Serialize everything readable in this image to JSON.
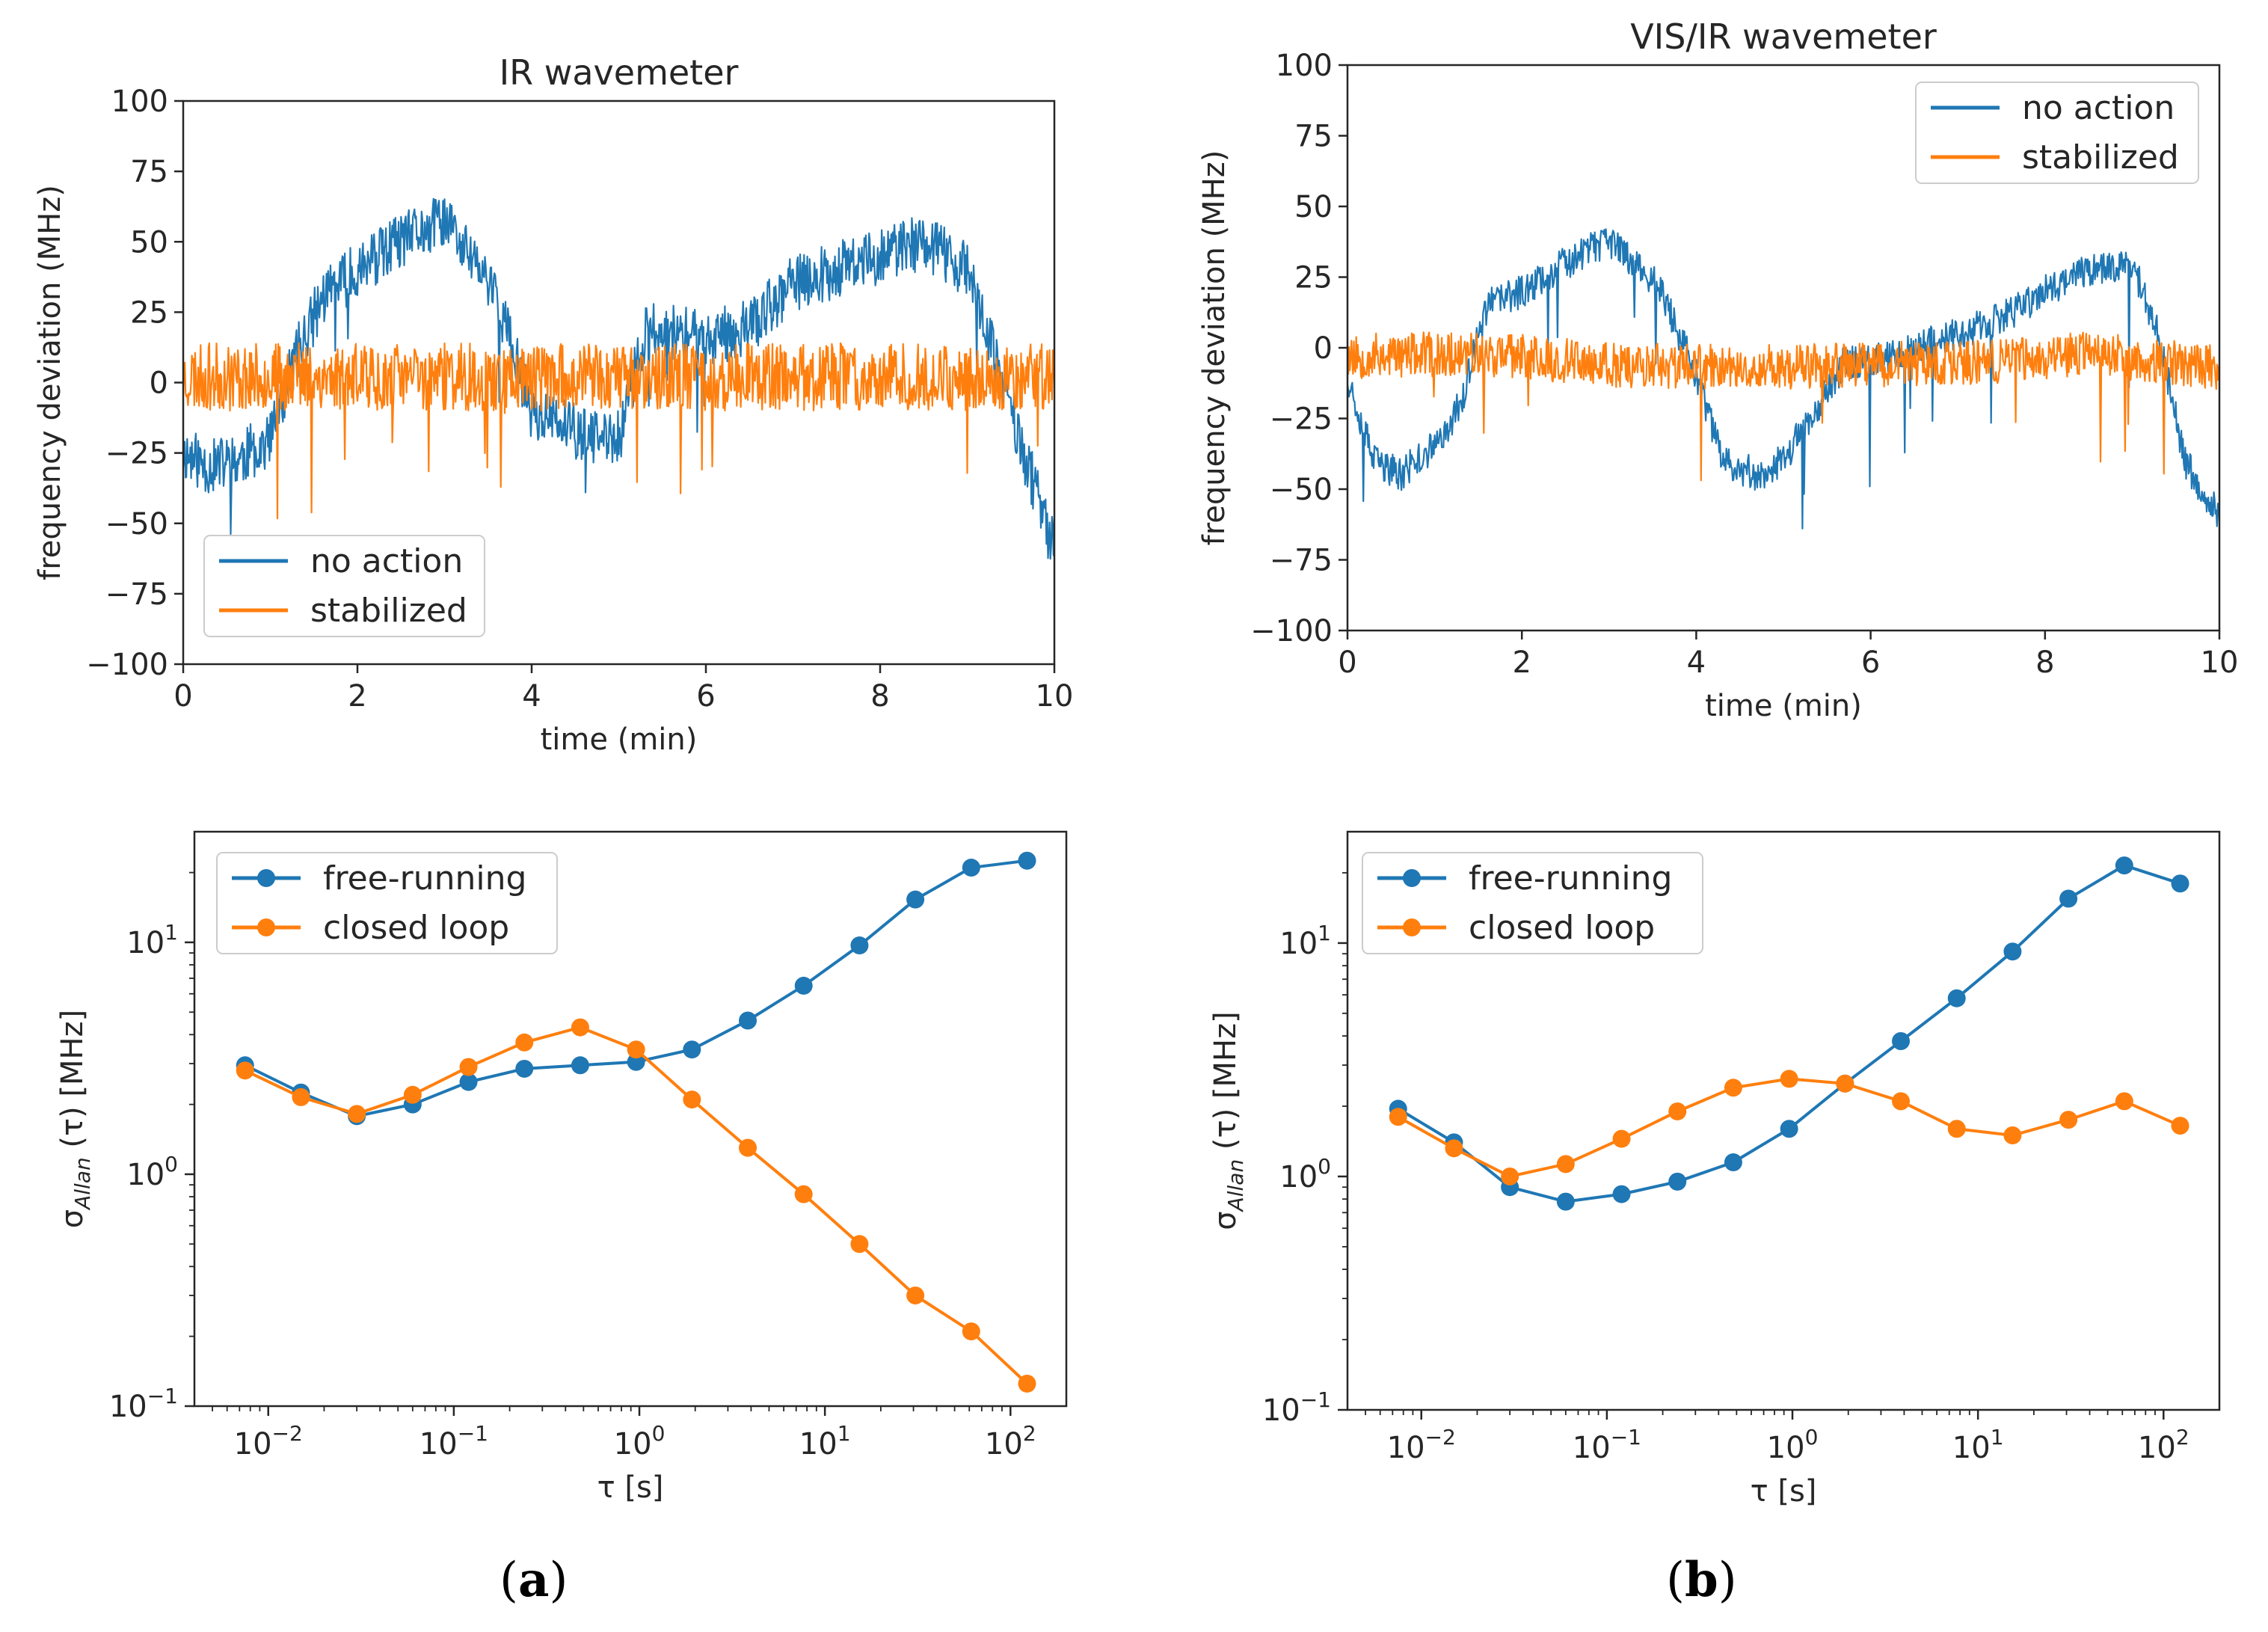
{
  "chart_data": [
    {
      "type": "line",
      "title": "IR wavemeter",
      "xlabel": "time (min)",
      "ylabel": "frequency deviation (MHz)",
      "xlim": [
        0,
        10
      ],
      "ylim": [
        -100,
        100
      ],
      "xticks": [
        0,
        2,
        4,
        6,
        8,
        10
      ],
      "xtick_labels": [
        "0",
        "2",
        "4",
        "6",
        "8",
        "10"
      ],
      "yticks": [
        -100,
        -75,
        -50,
        -25,
        0,
        25,
        50,
        75,
        100
      ],
      "ytick_labels": [
        "−100",
        "−75",
        "−50",
        "−25",
        "0",
        "25",
        "50",
        "75",
        "100"
      ],
      "legend_position": "lower-left",
      "series": [
        {
          "name": "no action",
          "color": "#1f77b4",
          "noise": 10,
          "seed": 11,
          "x": [
            0,
            0.3,
            0.6,
            1.0,
            1.3,
            1.6,
            2.0,
            2.5,
            3.0,
            3.3,
            3.6,
            4.0,
            4.3,
            4.7,
            5.0,
            5.3,
            5.6,
            6.0,
            6.5,
            7.0,
            7.5,
            8.0,
            8.5,
            9.0,
            9.3,
            9.6,
            10.0
          ],
          "y": [
            -25,
            -30,
            -28,
            -20,
            10,
            30,
            40,
            50,
            58,
            45,
            30,
            -10,
            -15,
            -20,
            -20,
            18,
            18,
            15,
            20,
            35,
            40,
            45,
            50,
            40,
            10,
            -20,
            -60
          ]
        },
        {
          "name": "stabilized",
          "color": "#ff7f0e",
          "noise": 12,
          "seed": 23,
          "x": [
            0,
            10
          ],
          "y": [
            2,
            2
          ]
        }
      ]
    },
    {
      "type": "line",
      "title": "VIS/IR wavemeter",
      "xlabel": "time (min)",
      "ylabel": "frequency deviation (MHz)",
      "xlim": [
        0,
        10
      ],
      "ylim": [
        -100,
        100
      ],
      "xticks": [
        0,
        2,
        4,
        6,
        8,
        10
      ],
      "xtick_labels": [
        "0",
        "2",
        "4",
        "6",
        "8",
        "10"
      ],
      "yticks": [
        -100,
        -75,
        -50,
        -25,
        0,
        25,
        50,
        75,
        100
      ],
      "ytick_labels": [
        "−100",
        "−75",
        "−50",
        "−25",
        "0",
        "25",
        "50",
        "75",
        "100"
      ],
      "legend_position": "upper-right",
      "series": [
        {
          "name": "no action",
          "color": "#1f77b4",
          "noise": 6,
          "seed": 37,
          "x": [
            0,
            0.3,
            0.6,
            1.0,
            1.3,
            1.6,
            2.0,
            2.5,
            3.0,
            3.3,
            3.6,
            4.0,
            4.3,
            4.7,
            5.0,
            5.3,
            5.7,
            6.0,
            6.5,
            7.0,
            7.5,
            8.0,
            8.5,
            9.0,
            9.3,
            9.6,
            10.0
          ],
          "y": [
            -10,
            -40,
            -45,
            -35,
            -20,
            15,
            20,
            30,
            38,
            30,
            20,
            -10,
            -40,
            -45,
            -40,
            -25,
            -5,
            -5,
            0,
            5,
            10,
            20,
            28,
            30,
            5,
            -40,
            -60
          ]
        },
        {
          "name": "stabilized",
          "color": "#ff7f0e",
          "noise": 8,
          "seed": 53,
          "x": [
            0,
            1.5,
            3,
            4.5,
            6,
            7.5,
            8.5,
            10
          ],
          "y": [
            -3,
            -2,
            -6,
            -7,
            -6,
            -5,
            -2,
            -7
          ]
        }
      ]
    },
    {
      "type": "line",
      "scale": "log-log",
      "xlabel": "τ [s]",
      "ylabel_main": "σ",
      "ylabel_sub": "Allan",
      "ylabel_rest": " (τ) [MHz]",
      "xlim": [
        0.004,
        200
      ],
      "ylim": [
        0.1,
        30
      ],
      "xticks_base": [
        "10",
        "10",
        "10",
        "10",
        "10"
      ],
      "xticks_exp": [
        "−2",
        "−1",
        "0",
        "1",
        "2"
      ],
      "xtick_values": [
        0.01,
        0.1,
        1,
        10,
        100
      ],
      "yticks_base": [
        "10",
        "10",
        "10"
      ],
      "yticks_exp": [
        "−1",
        "0",
        "1"
      ],
      "ytick_values": [
        0.1,
        1,
        10
      ],
      "legend_position": "upper-left",
      "series": [
        {
          "name": "free-running",
          "color": "#1f77b4",
          "x": [
            0.0075,
            0.015,
            0.03,
            0.06,
            0.12,
            0.24,
            0.48,
            0.96,
            1.92,
            3.84,
            7.68,
            15.36,
            30.72,
            61.44,
            122.88
          ],
          "y": [
            2.95,
            2.25,
            1.78,
            2.0,
            2.5,
            2.85,
            2.95,
            3.05,
            3.45,
            4.6,
            6.5,
            9.7,
            15.3,
            21,
            22.5
          ]
        },
        {
          "name": "closed loop",
          "color": "#ff7f0e",
          "x": [
            0.0075,
            0.015,
            0.03,
            0.06,
            0.12,
            0.24,
            0.48,
            0.96,
            1.92,
            3.84,
            7.68,
            15.36,
            30.72,
            61.44,
            122.88
          ],
          "y": [
            2.8,
            2.15,
            1.82,
            2.2,
            2.9,
            3.7,
            4.3,
            3.45,
            2.1,
            1.3,
            0.82,
            0.5,
            0.3,
            0.21,
            0.125
          ]
        }
      ]
    },
    {
      "type": "line",
      "scale": "log-log",
      "xlabel": "τ [s]",
      "ylabel_main": "σ",
      "ylabel_sub": "Allan",
      "ylabel_rest": " (τ) [MHz]",
      "xlim": [
        0.004,
        200
      ],
      "ylim": [
        0.1,
        30
      ],
      "xticks_base": [
        "10",
        "10",
        "10",
        "10",
        "10"
      ],
      "xticks_exp": [
        "−2",
        "−1",
        "0",
        "1",
        "2"
      ],
      "xtick_values": [
        0.01,
        0.1,
        1,
        10,
        100
      ],
      "yticks_base": [
        "10",
        "10",
        "10"
      ],
      "yticks_exp": [
        "−1",
        "0",
        "1"
      ],
      "ytick_values": [
        0.1,
        1,
        10
      ],
      "legend_position": "upper-left",
      "series": [
        {
          "name": "free-running",
          "color": "#1f77b4",
          "x": [
            0.0075,
            0.015,
            0.03,
            0.06,
            0.12,
            0.24,
            0.48,
            0.96,
            1.92,
            3.84,
            7.68,
            15.36,
            30.72,
            61.44,
            122.88
          ],
          "y": [
            1.95,
            1.4,
            0.9,
            0.78,
            0.84,
            0.95,
            1.15,
            1.6,
            2.5,
            3.8,
            5.8,
            9.2,
            15.5,
            21.5,
            18
          ]
        },
        {
          "name": "closed loop",
          "color": "#ff7f0e",
          "x": [
            0.0075,
            0.015,
            0.03,
            0.06,
            0.12,
            0.24,
            0.48,
            0.96,
            1.92,
            3.84,
            7.68,
            15.36,
            30.72,
            61.44,
            122.88
          ],
          "y": [
            1.8,
            1.32,
            1.0,
            1.13,
            1.45,
            1.9,
            2.4,
            2.62,
            2.5,
            2.1,
            1.6,
            1.5,
            1.75,
            2.1,
            1.65
          ]
        }
      ]
    }
  ],
  "captions": {
    "a_open": "(",
    "a_letter": "a",
    "a_close": ")",
    "b_open": "(",
    "b_letter": "b",
    "b_close": ")"
  }
}
